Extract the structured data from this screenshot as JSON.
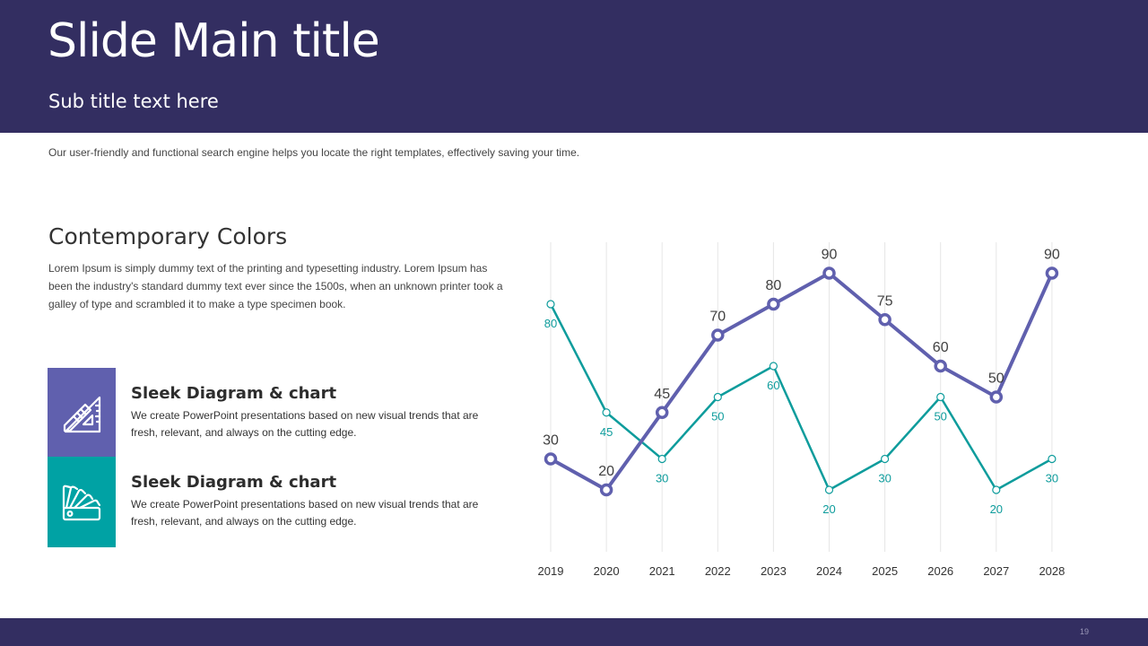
{
  "header": {
    "title": "Slide Main title",
    "subtitle": "Sub title text here"
  },
  "intro": "Our user-friendly and functional search engine helps you locate the right templates, effectively saving your time.",
  "section": {
    "title": "Contemporary Colors",
    "body": "Lorem Ipsum is simply dummy text of the printing and typesetting industry. Lorem Ipsum has been the industry's standard dummy text ever since the 1500s, when an unknown printer took a galley of type and scrambled it to make a type specimen book."
  },
  "features": [
    {
      "title": "Sleek Diagram & chart",
      "text": "We create PowerPoint presentations based on new visual trends that are fresh, relevant, and always on the cutting edge.",
      "icon": "drafting-tools-icon",
      "color": "#6060ae"
    },
    {
      "title": "Sleek Diagram & chart",
      "text": "We create PowerPoint presentations based on new visual trends that are fresh, relevant, and always on the cutting edge.",
      "icon": "color-swatch-icon",
      "color": "#00a2a4"
    }
  ],
  "chart_data": {
    "type": "line",
    "x": [
      "2019",
      "2020",
      "2021",
      "2022",
      "2023",
      "2024",
      "2025",
      "2026",
      "2027",
      "2028"
    ],
    "series": [
      {
        "values": [
          30,
          20,
          45,
          70,
          80,
          90,
          75,
          60,
          50,
          90
        ],
        "color": "#6060ae"
      },
      {
        "values": [
          80,
          45,
          30,
          50,
          60,
          20,
          30,
          50,
          20,
          30
        ],
        "color": "#0e9c9c"
      }
    ],
    "ylim": [
      0,
      100
    ],
    "grid": "vertical",
    "legend": "none",
    "title": "",
    "xlabel": "",
    "ylabel": ""
  },
  "footer": {
    "page_number": "19"
  }
}
